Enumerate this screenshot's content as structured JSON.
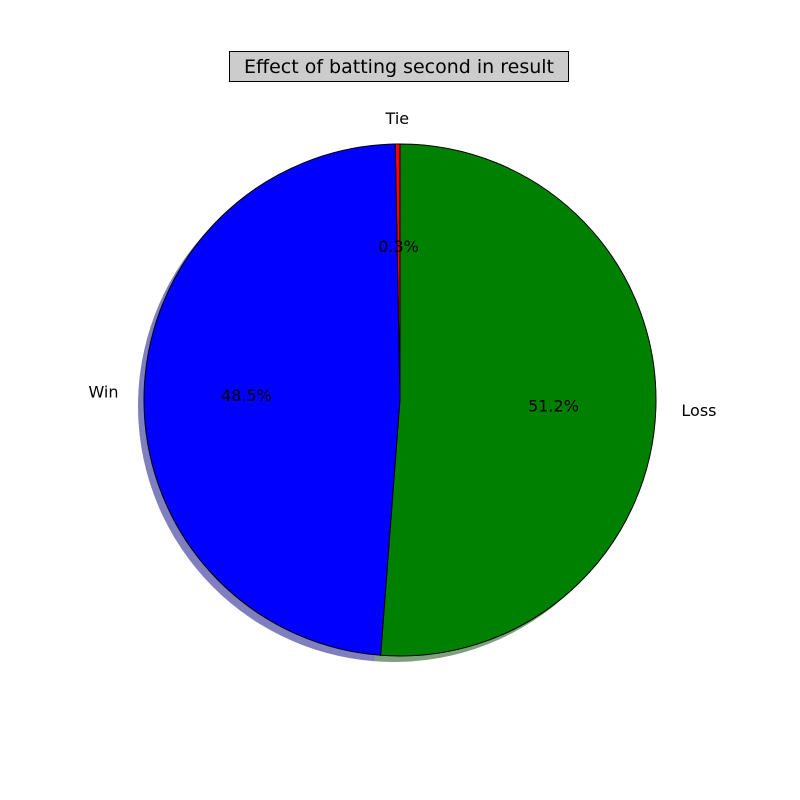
{
  "chart_data": {
    "type": "pie",
    "title": "Effect of batting second in result",
    "shadow": true,
    "start_angle_deg": 90,
    "direction": "counterclockwise",
    "slices": [
      {
        "label": "Tie",
        "value": 0.3,
        "pct_label": "0.3%",
        "color": "#ff0000"
      },
      {
        "label": "Win",
        "value": 48.5,
        "pct_label": "48.5%",
        "color": "#0000ff"
      },
      {
        "label": "Loss",
        "value": 51.2,
        "pct_label": "51.2%",
        "color": "#008000"
      }
    ]
  }
}
